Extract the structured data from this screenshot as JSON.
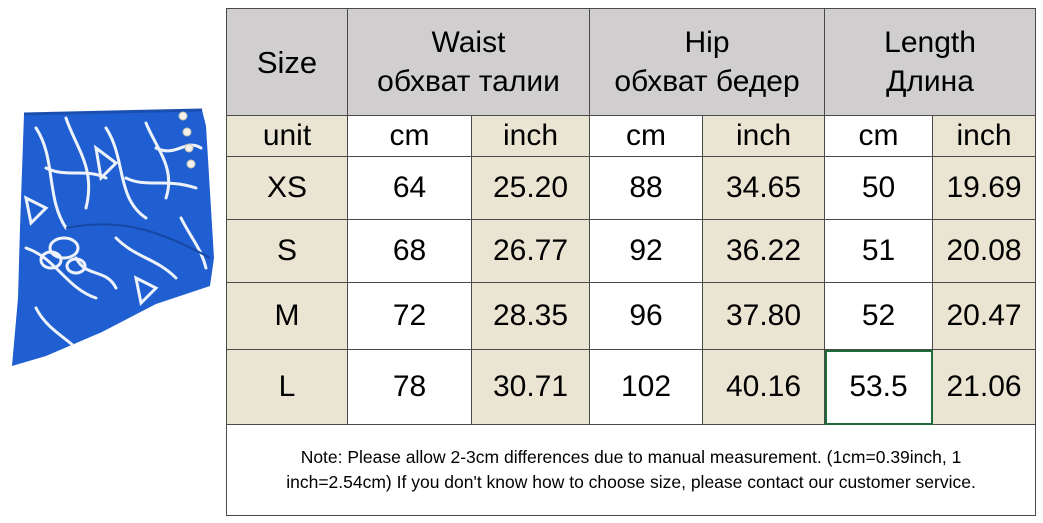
{
  "table": {
    "size_header": "Size",
    "groups": [
      {
        "en": "Waist",
        "ru": "обхват талии"
      },
      {
        "en": "Hip",
        "ru": "обхват бедер"
      },
      {
        "en": "Length",
        "ru": "Длина"
      }
    ],
    "unit_row": [
      "unit",
      "cm",
      "inch",
      "cm",
      "inch",
      "cm",
      "inch"
    ],
    "rows": [
      [
        "XS",
        "64",
        "25.20",
        "88",
        "34.65",
        "50",
        "19.69"
      ],
      [
        "S",
        "68",
        "26.77",
        "92",
        "36.22",
        "51",
        "20.08"
      ],
      [
        "M",
        "72",
        "28.35",
        "96",
        "37.80",
        "52",
        "20.47"
      ],
      [
        "L",
        "78",
        "30.71",
        "102",
        "40.16",
        "53.5",
        "21.06"
      ]
    ],
    "note_line1": "Note: Please allow 2-3cm differences due to manual measurement. (1cm=0.39inch, 1",
    "note_line2": "inch=2.54cm)  If you don't know how to choose size, please contact our customer service."
  },
  "colors": {
    "header_bg": "#d0cece",
    "beige": "#eae5d3",
    "skirt_blue": "#1f5fd1"
  }
}
